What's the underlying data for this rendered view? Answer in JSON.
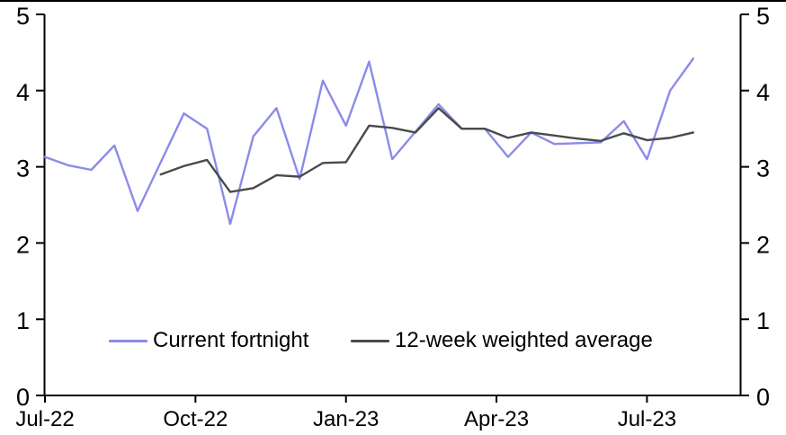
{
  "colors": {
    "background": "#ffffff",
    "axis": "#000000",
    "frame_border": "#000000",
    "series_current": "#8b8be9",
    "series_average": "#4a4a4a"
  },
  "chart_data": {
    "type": "line",
    "title": "",
    "xlabel": "",
    "ylabel": "",
    "ylim": [
      0,
      5
    ],
    "grid": false,
    "legend_position": "inside-bottom",
    "x_unit": "fortnight index (one point per fortnight, Jul-22 to mid-Aug-23)",
    "x": [
      0,
      1,
      2,
      3,
      4,
      5,
      6,
      7,
      8,
      9,
      10,
      11,
      12,
      13,
      14,
      15,
      16,
      17,
      18,
      19,
      20,
      21,
      22,
      23,
      24,
      25,
      26,
      27,
      28
    ],
    "x_ticks": {
      "positions": [
        0,
        6.5,
        13,
        19.5,
        26
      ],
      "labels": [
        "Jul-22",
        "Oct-22",
        "Jan-23",
        "Apr-23",
        "Jul-23"
      ]
    },
    "y_ticks": [
      0,
      1,
      2,
      3,
      4,
      5
    ],
    "y_tick_labels": [
      "0",
      "1",
      "2",
      "3",
      "4",
      "5"
    ],
    "y_axis_sides": [
      "left",
      "right"
    ],
    "series": [
      {
        "name": "Current fortnight",
        "color": "#8b8be9",
        "values": [
          3.13,
          3.02,
          2.96,
          3.28,
          2.42,
          3.06,
          3.7,
          3.5,
          2.25,
          3.4,
          3.77,
          2.84,
          4.13,
          3.54,
          4.38,
          3.1,
          3.46,
          3.82,
          3.5,
          3.5,
          3.13,
          3.45,
          3.3,
          3.31,
          3.32,
          3.6,
          3.1,
          4.0,
          4.42
        ]
      },
      {
        "name": "12-week weighted average",
        "color": "#4a4a4a",
        "values": [
          null,
          null,
          null,
          null,
          null,
          2.9,
          3.01,
          3.09,
          2.67,
          2.72,
          2.89,
          2.87,
          3.05,
          3.06,
          3.54,
          3.51,
          3.45,
          3.77,
          3.5,
          3.5,
          3.38,
          3.45,
          3.41,
          3.37,
          3.34,
          3.44,
          3.35,
          3.38,
          3.45
        ]
      }
    ]
  }
}
